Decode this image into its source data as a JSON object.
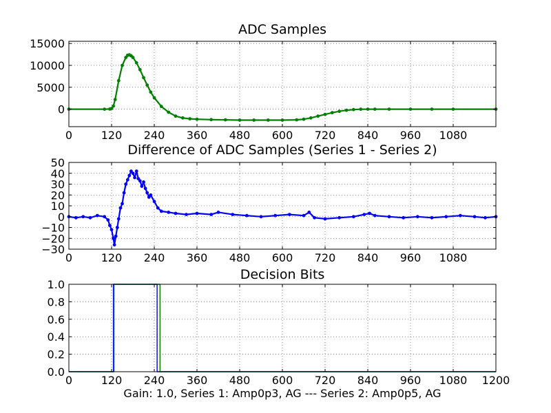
{
  "caption": "Gain: 1.0, Series 1: Amp0p3, AG --- Series 2: Amp0p5, AG",
  "colors": {
    "green": "#007f00",
    "blue": "#0000ff"
  },
  "chart_data": [
    {
      "type": "line",
      "title": "ADC Samples",
      "xlim": [
        0,
        1200
      ],
      "ylim": [
        -4000,
        15500
      ],
      "xticks": [
        0,
        120,
        240,
        360,
        480,
        600,
        720,
        840,
        960,
        1080
      ],
      "yticks": [
        0,
        5000,
        10000,
        15000
      ],
      "xtick_labels": [
        "0",
        "120",
        "240",
        "360",
        "480",
        "600",
        "720",
        "840",
        "960",
        "1080"
      ],
      "ytick_labels": [
        "0",
        "5000",
        "10000",
        "15000"
      ],
      "grid": true,
      "series": [
        {
          "color": "#007f00",
          "marker": "dot",
          "x": [
            0,
            100,
            115,
            120,
            125,
            130,
            140,
            150,
            160,
            165,
            170,
            175,
            180,
            190,
            200,
            210,
            220,
            230,
            240,
            260,
            280,
            300,
            320,
            340,
            360,
            400,
            440,
            480,
            520,
            560,
            600,
            640,
            660,
            680,
            700,
            720,
            740,
            760,
            780,
            800,
            820,
            840,
            860,
            900,
            960,
            1020,
            1080,
            1200
          ],
          "y": [
            0,
            0,
            20,
            150,
            700,
            2200,
            6500,
            10000,
            11800,
            12300,
            12400,
            12200,
            11800,
            10600,
            9000,
            7200,
            5500,
            3900,
            2600,
            600,
            -700,
            -1600,
            -2000,
            -2200,
            -2300,
            -2400,
            -2450,
            -2500,
            -2500,
            -2500,
            -2500,
            -2450,
            -2300,
            -2000,
            -1600,
            -1200,
            -800,
            -500,
            -250,
            -100,
            -20,
            0,
            0,
            0,
            0,
            0,
            0,
            0
          ]
        }
      ]
    },
    {
      "type": "line",
      "title": "Difference of ADC Samples (Series 1 - Series 2)",
      "xlim": [
        0,
        1200
      ],
      "ylim": [
        -30,
        50
      ],
      "xticks": [
        0,
        120,
        240,
        360,
        480,
        600,
        720,
        840,
        960,
        1080
      ],
      "yticks": [
        -30,
        -20,
        -10,
        0,
        10,
        20,
        30,
        40,
        50
      ],
      "xtick_labels": [
        "0",
        "120",
        "240",
        "360",
        "480",
        "600",
        "720",
        "840",
        "960",
        "1080"
      ],
      "ytick_labels": [
        "−30",
        "−20",
        "−10",
        "0",
        "10",
        "20",
        "30",
        "40",
        "50"
      ],
      "grid": true,
      "series": [
        {
          "color": "#0000ff",
          "marker": "dot",
          "x": [
            0,
            20,
            40,
            60,
            80,
            100,
            110,
            115,
            120,
            125,
            128,
            132,
            136,
            140,
            145,
            150,
            155,
            160,
            165,
            170,
            175,
            180,
            185,
            190,
            195,
            200,
            205,
            210,
            215,
            220,
            225,
            230,
            240,
            250,
            260,
            280,
            300,
            330,
            360,
            400,
            420,
            460,
            500,
            540,
            580,
            620,
            660,
            675,
            690,
            720,
            760,
            800,
            830,
            845,
            860,
            900,
            940,
            980,
            1020,
            1060,
            1100,
            1140,
            1170,
            1200
          ],
          "y": [
            0,
            -1,
            0,
            -1,
            1,
            0,
            -3,
            -8,
            -12,
            -20,
            -26,
            -18,
            -10,
            -2,
            8,
            12,
            22,
            30,
            34,
            38,
            42,
            40,
            36,
            42,
            35,
            33,
            28,
            32,
            26,
            22,
            18,
            20,
            14,
            8,
            5,
            4,
            3,
            2,
            3,
            2,
            4,
            2,
            1,
            0,
            1,
            2,
            1,
            4,
            -1,
            -2,
            -1,
            0,
            2,
            3,
            1,
            0,
            -1,
            0,
            -1,
            0,
            1,
            0,
            -1,
            0
          ]
        }
      ]
    },
    {
      "type": "line",
      "title": "Decision Bits",
      "xlim": [
        0,
        1200
      ],
      "ylim": [
        0.0,
        1.0
      ],
      "xticks": [
        0,
        120,
        240,
        360,
        480,
        600,
        720,
        840,
        960,
        1080,
        1200
      ],
      "yticks": [
        0.0,
        0.2,
        0.4,
        0.6,
        0.8,
        1.0
      ],
      "xtick_labels": [
        "0",
        "120",
        "240",
        "360",
        "480",
        "600",
        "720",
        "840",
        "960",
        "1080",
        "1200"
      ],
      "ytick_labels": [
        "0.0",
        "0.2",
        "0.4",
        "0.6",
        "0.8",
        "1.0"
      ],
      "grid": true,
      "series": [
        {
          "color": "#0000ff",
          "marker": "none",
          "x": [
            0,
            125,
            125,
            248,
            248,
            1200
          ],
          "y": [
            0,
            0,
            1,
            1,
            0,
            0
          ]
        },
        {
          "color": "#007f00",
          "marker": "none",
          "x": [
            0,
            127,
            127,
            256,
            256,
            1200
          ],
          "y": [
            0,
            0,
            1,
            1,
            0,
            0
          ]
        }
      ]
    }
  ]
}
